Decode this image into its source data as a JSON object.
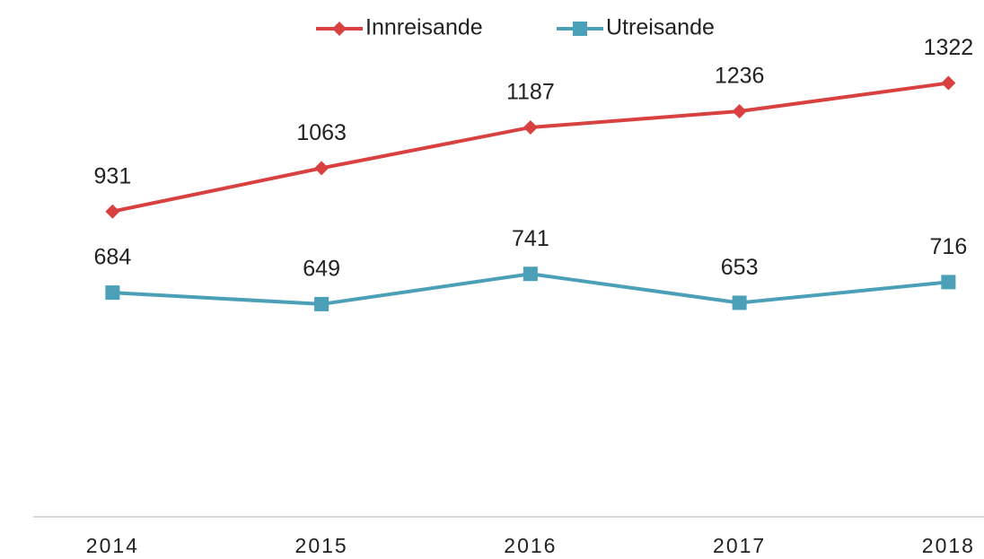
{
  "chart_data": {
    "type": "line",
    "categories": [
      "2014",
      "2015",
      "2016",
      "2017",
      "2018"
    ],
    "series": [
      {
        "name": "Innreisande",
        "color": "#d94040",
        "marker": "diamond",
        "values": [
          931,
          1063,
          1187,
          1236,
          1322
        ]
      },
      {
        "name": "Utreisande",
        "color": "#4ba0b8",
        "marker": "square",
        "values": [
          684,
          649,
          741,
          653,
          716
        ]
      }
    ],
    "ylim": [
      0,
      1400
    ],
    "legend": "top"
  }
}
